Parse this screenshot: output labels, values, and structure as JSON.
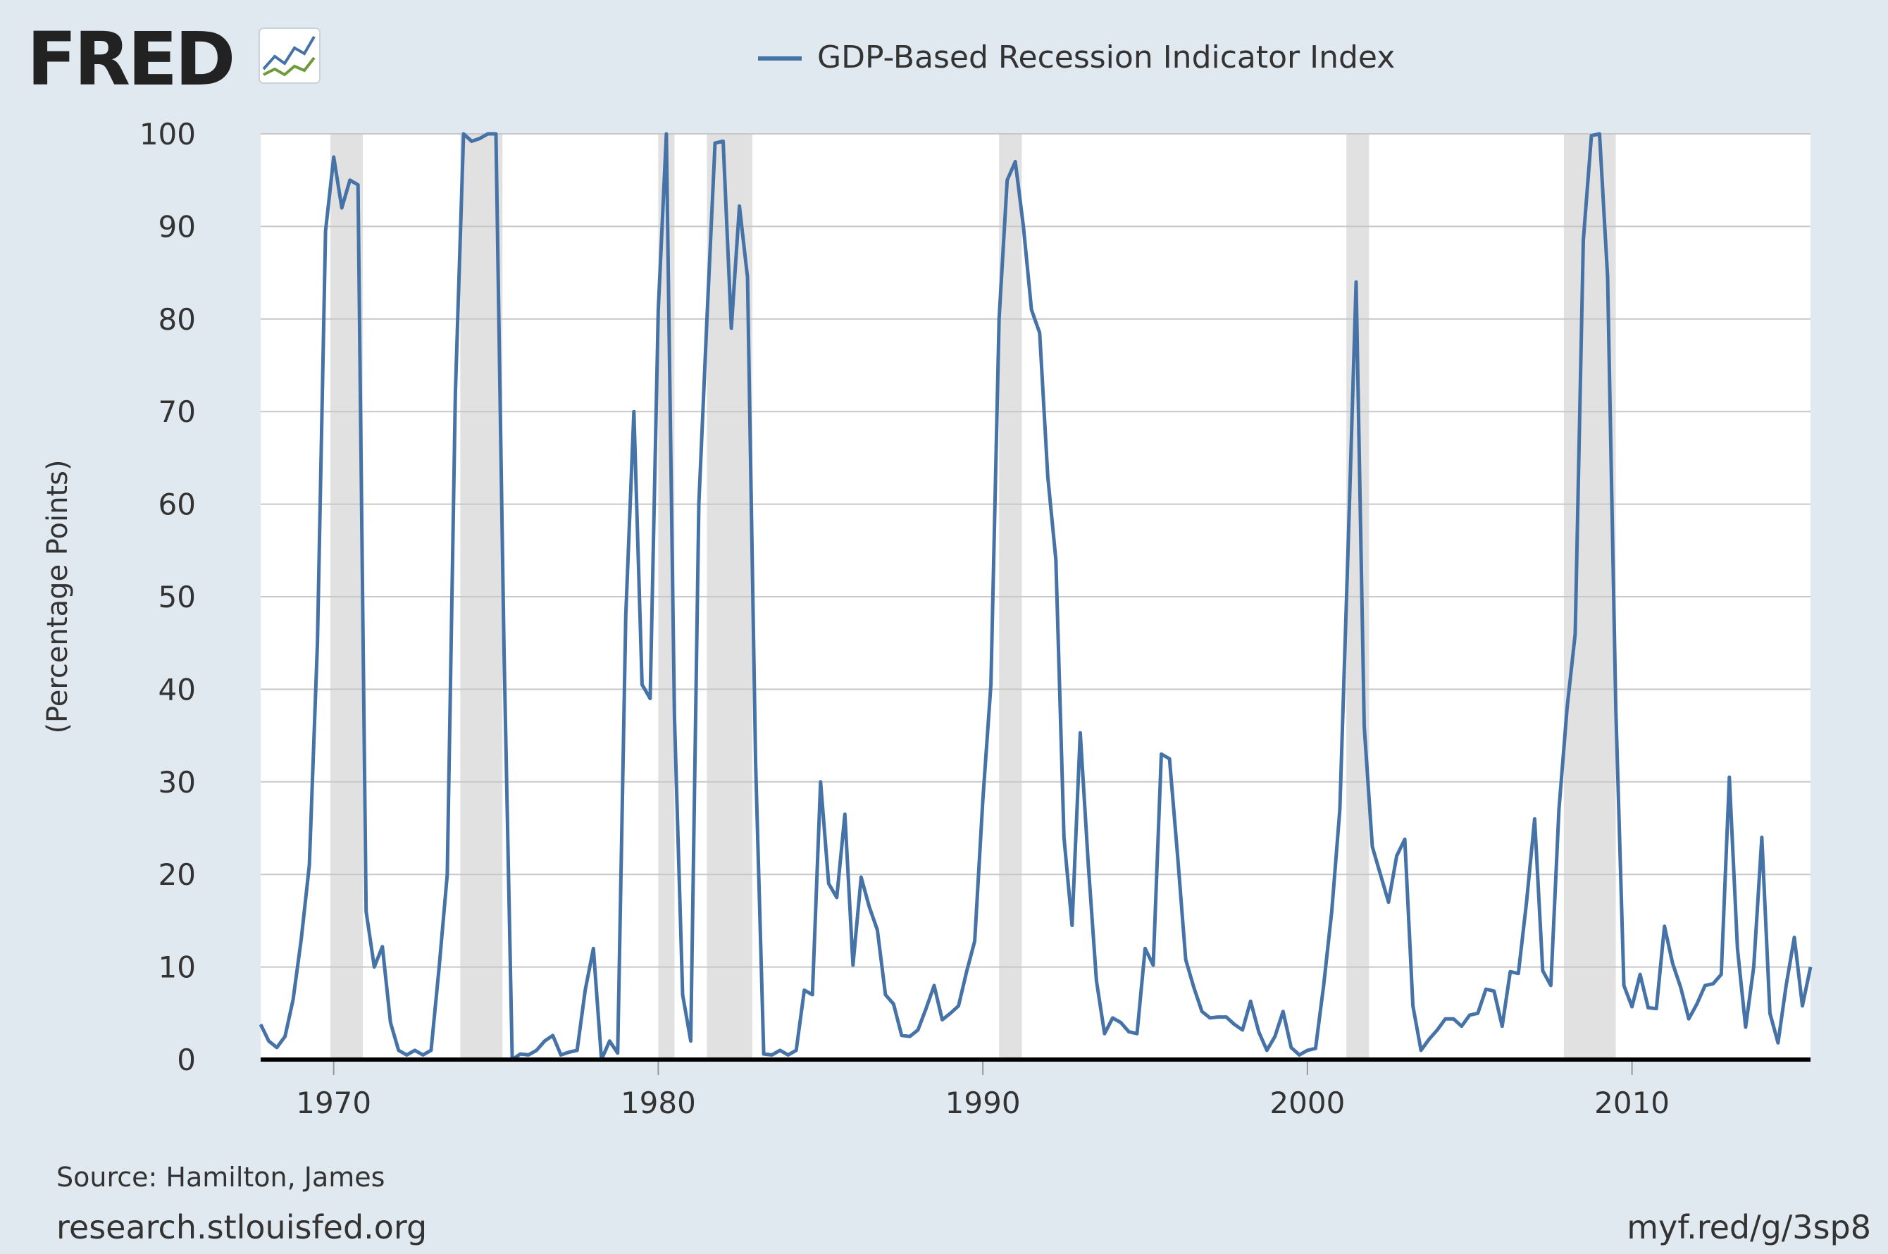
{
  "header": {
    "logo_text": "FRED",
    "legend_label": "GDP-Based Recession Indicator Index"
  },
  "footer": {
    "source": "Source: Hamilton, James",
    "site": "research.stlouisfed.org",
    "short_url": "myf.red/g/3sp8"
  },
  "colors": {
    "background": "#e1e9f0",
    "plot_background": "#ffffff",
    "line": "#4572a7",
    "recession_shade": "#e1e1e1",
    "grid": "#c8c8c8",
    "axis": "#000000",
    "logo": "#222222"
  },
  "chart_data": {
    "type": "line",
    "title": "",
    "xlabel": "",
    "ylabel": "(Percentage Points)",
    "ylim": [
      0,
      100
    ],
    "yticks": [
      0,
      10,
      20,
      30,
      40,
      50,
      60,
      70,
      80,
      90,
      100
    ],
    "xlim": [
      1967.75,
      2015.5
    ],
    "xticks": [
      1970,
      1980,
      1990,
      2000,
      2010
    ],
    "grid": true,
    "legend": "top-center",
    "recessions": [
      [
        1969.9,
        1970.9
      ],
      [
        1973.9,
        1975.2
      ],
      [
        1980.0,
        1980.5
      ],
      [
        1981.5,
        1982.9
      ],
      [
        1990.5,
        1991.2
      ],
      [
        2001.2,
        2001.9
      ],
      [
        2007.9,
        2009.5
      ]
    ],
    "series": [
      {
        "name": "GDP-Based Recession Indicator Index",
        "x": [
          1967.75,
          1968.0,
          1968.25,
          1968.5,
          1968.75,
          1969.0,
          1969.25,
          1969.5,
          1969.75,
          1970.0,
          1970.25,
          1970.5,
          1970.75,
          1971.0,
          1971.25,
          1971.5,
          1971.75,
          1972.0,
          1972.25,
          1972.5,
          1972.75,
          1973.0,
          1973.25,
          1973.5,
          1973.75,
          1974.0,
          1974.25,
          1974.5,
          1974.75,
          1975.0,
          1975.25,
          1975.5,
          1975.75,
          1976.0,
          1976.25,
          1976.5,
          1976.75,
          1977.0,
          1977.25,
          1977.5,
          1977.75,
          1978.0,
          1978.25,
          1978.5,
          1978.75,
          1979.0,
          1979.25,
          1979.5,
          1979.75,
          1980.0,
          1980.25,
          1980.5,
          1980.75,
          1981.0,
          1981.25,
          1981.5,
          1981.75,
          1982.0,
          1982.25,
          1982.5,
          1982.75,
          1983.0,
          1983.25,
          1983.5,
          1983.75,
          1984.0,
          1984.25,
          1984.5,
          1984.75,
          1985.0,
          1985.25,
          1985.5,
          1985.75,
          1986.0,
          1986.25,
          1986.5,
          1986.75,
          1987.0,
          1987.25,
          1987.5,
          1987.75,
          1988.0,
          1988.25,
          1988.5,
          1988.75,
          1989.0,
          1989.25,
          1989.5,
          1989.75,
          1990.0,
          1990.25,
          1990.5,
          1990.75,
          1991.0,
          1991.25,
          1991.5,
          1991.75,
          1992.0,
          1992.25,
          1992.5,
          1992.75,
          1993.0,
          1993.25,
          1993.5,
          1993.75,
          1994.0,
          1994.25,
          1994.5,
          1994.75,
          1995.0,
          1995.25,
          1995.5,
          1995.75,
          1996.0,
          1996.25,
          1996.5,
          1996.75,
          1997.0,
          1997.25,
          1997.5,
          1997.75,
          1998.0,
          1998.25,
          1998.5,
          1998.75,
          1999.0,
          1999.25,
          1999.5,
          1999.75,
          2000.0,
          2000.25,
          2000.5,
          2000.75,
          2001.0,
          2001.25,
          2001.5,
          2001.75,
          2002.0,
          2002.25,
          2002.5,
          2002.75,
          2003.0,
          2003.25,
          2003.5,
          2003.75,
          2004.0,
          2004.25,
          2004.5,
          2004.75,
          2005.0,
          2005.25,
          2005.5,
          2005.75,
          2006.0,
          2006.25,
          2006.5,
          2006.75,
          2007.0,
          2007.25,
          2007.5,
          2007.75,
          2008.0,
          2008.25,
          2008.5,
          2008.75,
          2009.0,
          2009.25,
          2009.5,
          2009.75,
          2010.0,
          2010.25,
          2010.5,
          2010.75,
          2011.0,
          2011.25,
          2011.5,
          2011.75,
          2012.0,
          2012.25,
          2012.5,
          2012.75,
          2013.0,
          2013.25,
          2013.5,
          2013.75,
          2014.0,
          2014.25,
          2014.5,
          2014.75,
          2015.0,
          2015.25,
          2015.5
        ],
        "values": [
          3.8,
          2.0,
          1.3,
          2.5,
          6.5,
          13.0,
          21.0,
          45.0,
          89.5,
          97.5,
          92.0,
          95.0,
          94.5,
          16.0,
          10.0,
          12.2,
          4.0,
          1.0,
          0.5,
          1.0,
          0.5,
          1.0,
          10.0,
          20.0,
          72.0,
          100.0,
          99.2,
          99.5,
          100.0,
          100.0,
          44.0,
          0.0,
          0.6,
          0.5,
          1.0,
          2.0,
          2.6,
          0.5,
          0.8,
          1.0,
          7.5,
          12.0,
          0.0,
          2.0,
          0.7,
          48.0,
          70.0,
          40.5,
          39.0,
          81.0,
          100.0,
          37.0,
          7.0,
          2.0,
          60.0,
          80.0,
          99.0,
          99.2,
          79.0,
          92.2,
          84.5,
          32.0,
          0.6,
          0.5,
          1.0,
          0.5,
          1.0,
          7.5,
          7.0,
          30.0,
          19.0,
          17.5,
          26.5,
          10.2,
          19.7,
          16.5,
          14.0,
          7.0,
          6.0,
          2.6,
          2.5,
          3.2,
          5.5,
          8.0,
          4.3,
          5.0,
          5.8,
          9.5,
          12.8,
          28.0,
          40.5,
          80.0,
          95.0,
          97.0,
          90.0,
          81.0,
          78.5,
          63.0,
          54.0,
          24.0,
          14.5,
          35.3,
          21.0,
          8.5,
          2.8,
          4.5,
          4.0,
          3.0,
          2.8,
          12.0,
          10.2,
          33.0,
          32.5,
          22.0,
          10.8,
          7.8,
          5.2,
          4.5,
          4.6,
          4.6,
          3.8,
          3.2,
          6.3,
          3.0,
          1.0,
          2.5,
          5.2,
          1.3,
          0.5,
          1.0,
          1.2,
          8.0,
          16.0,
          27.0,
          55.0,
          84.0,
          36.0,
          23.0,
          20.0,
          17.0,
          22.0,
          23.8,
          5.8,
          1.0,
          2.2,
          3.2,
          4.4,
          4.4,
          3.6,
          4.8,
          5.0,
          7.6,
          7.4,
          3.6,
          9.5,
          9.3,
          17.0,
          26.0,
          9.6,
          8.0,
          27.0,
          38.0,
          46.0,
          88.5,
          99.8,
          100.0,
          84.5,
          38.0,
          8.0,
          5.7,
          9.2,
          5.6,
          5.5,
          14.4,
          10.4,
          7.8,
          4.4,
          6.0,
          8.0,
          8.2,
          9.2,
          30.5,
          12.0,
          3.5,
          10.0,
          24.0,
          5.0,
          1.8,
          8.0,
          13.2,
          5.8,
          10.0
        ]
      }
    ]
  }
}
